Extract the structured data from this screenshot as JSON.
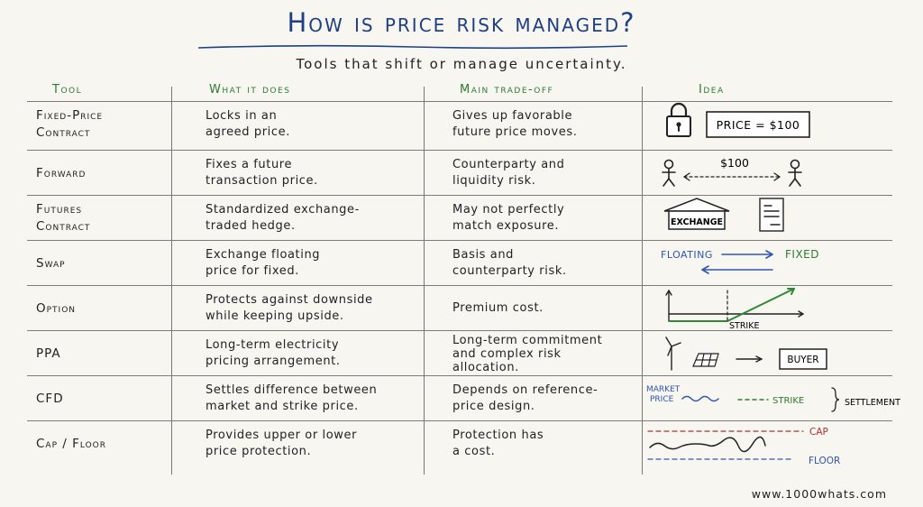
{
  "title": "How is price risk managed?",
  "subtitle": "Tools that shift or manage uncertainty.",
  "headers": {
    "tool": "Tool",
    "what": "What it does",
    "tradeoff": "Main trade-off",
    "idea": "Idea"
  },
  "rows": [
    {
      "tool_lines": [
        "Fixed-Price",
        "Contract"
      ],
      "what_lines": [
        "Locks in an",
        "agreed price."
      ],
      "tradeoff_lines": [
        "Gives up favorable",
        "future price moves."
      ]
    },
    {
      "tool_lines": [
        "Forward"
      ],
      "what_lines": [
        "Fixes a future",
        "transaction price."
      ],
      "tradeoff_lines": [
        "Counterparty and",
        "liquidity risk."
      ]
    },
    {
      "tool_lines": [
        "Futures",
        "Contract"
      ],
      "what_lines": [
        "Standardized exchange-",
        "traded hedge."
      ],
      "tradeoff_lines": [
        "May not perfectly",
        "match exposure."
      ]
    },
    {
      "tool_lines": [
        "Swap"
      ],
      "what_lines": [
        "Exchange floating",
        "price for fixed."
      ],
      "tradeoff_lines": [
        "Basis and",
        "counterparty risk."
      ]
    },
    {
      "tool_lines": [
        "Option"
      ],
      "what_lines": [
        "Protects against downside",
        "while keeping upside."
      ],
      "tradeoff_lines": [
        "Premium cost."
      ]
    },
    {
      "tool_lines": [
        "PPA"
      ],
      "what_lines": [
        "Long-term electricity",
        "pricing arrangement."
      ],
      "tradeoff_lines": [
        "Long-term commitment",
        "and complex risk",
        "allocation."
      ]
    },
    {
      "tool_lines": [
        "CFD"
      ],
      "what_lines": [
        "Settles difference between",
        "market and strike price."
      ],
      "tradeoff_lines": [
        "Depends on reference-",
        "price design."
      ]
    },
    {
      "tool_lines": [
        "Cap / Floor"
      ],
      "what_lines": [
        "Provides upper or lower",
        "price protection."
      ],
      "tradeoff_lines": [
        "Protection has",
        "a cost."
      ]
    }
  ],
  "sketches": {
    "fixed_price_box": "PRICE = $100",
    "forward_price": "$100",
    "exchange_label": "EXCHANGE",
    "swap_floating": "FLOATING",
    "swap_fixed": "FIXED",
    "option_strike": "STRIKE",
    "ppa_buyer": "BUYER",
    "cfd_market_price_line1": "MARKET",
    "cfd_market_price_line2": "PRICE",
    "cfd_strike": "STRIKE",
    "cfd_settlement": "SETTLEMENT",
    "cap_label": "CAP",
    "floor_label": "FLOOR"
  },
  "colors": {
    "title_blue": "#1f3f86",
    "header_green": "#2f7a33",
    "cap_red": "#b3312b",
    "floor_blue": "#2f56b0",
    "option_green": "#2f8a35"
  },
  "footer": "www.1000whats.com"
}
